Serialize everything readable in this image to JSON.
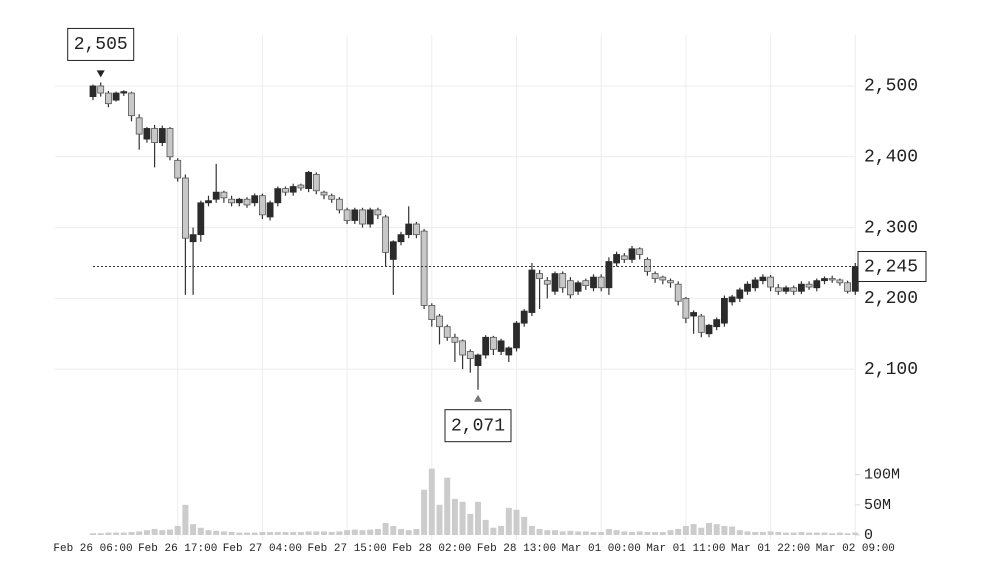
{
  "chart_data": [
    {
      "type": "candlestick",
      "x": [
        "Feb 26 06:00",
        null,
        null,
        null,
        null,
        null,
        null,
        null,
        null,
        null,
        null,
        "Feb 26 17:00",
        null,
        null,
        null,
        null,
        null,
        null,
        null,
        null,
        null,
        null,
        "Feb 27 04:00",
        null,
        null,
        null,
        null,
        null,
        null,
        null,
        null,
        null,
        null,
        "Feb 27 15:00",
        null,
        null,
        null,
        null,
        null,
        null,
        null,
        null,
        null,
        null,
        "Feb 28 02:00",
        null,
        null,
        null,
        null,
        null,
        null,
        null,
        null,
        null,
        null,
        "Feb 28 13:00",
        null,
        null,
        null,
        null,
        null,
        null,
        null,
        null,
        null,
        null,
        "Mar 01 00:00",
        null,
        null,
        null,
        null,
        null,
        null,
        null,
        null,
        null,
        null,
        "Mar 01 11:00",
        null,
        null,
        null,
        null,
        null,
        null,
        null,
        null,
        null,
        null,
        "Mar 01 22:00",
        null,
        null,
        null,
        null,
        null,
        null,
        null,
        null,
        null,
        null,
        "Mar 02 09:00"
      ],
      "open": [
        2485,
        2500,
        2490,
        2480,
        2490,
        2490,
        2455,
        2425,
        2440,
        2420,
        2440,
        2395,
        2370,
        2280,
        2290,
        2335,
        2340,
        2350,
        2340,
        2335,
        2340,
        2335,
        2345,
        2315,
        2335,
        2355,
        2350,
        2360,
        2355,
        2375,
        2350,
        2345,
        2340,
        2325,
        2310,
        2325,
        2305,
        2325,
        2315,
        2255,
        2280,
        2290,
        2305,
        2295,
        2190,
        2175,
        2160,
        2145,
        2140,
        2125,
        2105,
        2120,
        2145,
        2125,
        2120,
        2130,
        2165,
        2180,
        2235,
        2225,
        2210,
        2235,
        2225,
        2210,
        2225,
        2215,
        2230,
        2215,
        2250,
        2260,
        2255,
        2270,
        2255,
        2235,
        2230,
        2225,
        2220,
        2200,
        2175,
        2175,
        2150,
        2160,
        2165,
        2195,
        2200,
        2210,
        2215,
        2225,
        2230,
        2215,
        2210,
        2215,
        2210,
        2220,
        2215,
        2225,
        2228,
        2226,
        2222,
        2210
      ],
      "high": [
        2502,
        2505,
        2493,
        2492,
        2494,
        2492,
        2460,
        2442,
        2445,
        2444,
        2442,
        2398,
        2375,
        2300,
        2338,
        2345,
        2390,
        2352,
        2345,
        2342,
        2343,
        2348,
        2348,
        2338,
        2358,
        2358,
        2362,
        2362,
        2380,
        2378,
        2352,
        2348,
        2343,
        2328,
        2328,
        2328,
        2328,
        2328,
        2318,
        2282,
        2294,
        2330,
        2308,
        2298,
        2193,
        2178,
        2163,
        2150,
        2142,
        2128,
        2122,
        2148,
        2147,
        2143,
        2132,
        2168,
        2185,
        2250,
        2240,
        2230,
        2238,
        2238,
        2230,
        2225,
        2228,
        2234,
        2234,
        2258,
        2266,
        2264,
        2274,
        2272,
        2258,
        2238,
        2232,
        2228,
        2224,
        2202,
        2183,
        2178,
        2164,
        2173,
        2204,
        2205,
        2215,
        2224,
        2230,
        2234,
        2233,
        2220,
        2218,
        2218,
        2224,
        2224,
        2228,
        2231,
        2232,
        2228,
        2225,
        2250
      ],
      "low": [
        2480,
        2485,
        2470,
        2478,
        2486,
        2450,
        2410,
        2420,
        2385,
        2415,
        2395,
        2365,
        2205,
        2205,
        2280,
        2330,
        2335,
        2335,
        2330,
        2330,
        2328,
        2330,
        2312,
        2310,
        2330,
        2345,
        2345,
        2352,
        2350,
        2347,
        2340,
        2335,
        2320,
        2305,
        2305,
        2300,
        2300,
        2312,
        2245,
        2205,
        2275,
        2285,
        2285,
        2185,
        2160,
        2135,
        2140,
        2110,
        2100,
        2095,
        2071,
        2115,
        2120,
        2120,
        2110,
        2125,
        2160,
        2175,
        2185,
        2200,
        2205,
        2208,
        2200,
        2205,
        2212,
        2210,
        2210,
        2205,
        2245,
        2250,
        2250,
        2255,
        2232,
        2222,
        2220,
        2215,
        2190,
        2165,
        2150,
        2145,
        2145,
        2155,
        2160,
        2190,
        2195,
        2205,
        2210,
        2220,
        2210,
        2205,
        2206,
        2205,
        2206,
        2212,
        2210,
        2220,
        2222,
        2218,
        2207,
        2205
      ],
      "close": [
        2500,
        2490,
        2475,
        2490,
        2492,
        2458,
        2432,
        2440,
        2420,
        2440,
        2400,
        2370,
        2285,
        2290,
        2335,
        2338,
        2350,
        2342,
        2335,
        2340,
        2332,
        2345,
        2318,
        2335,
        2355,
        2350,
        2358,
        2356,
        2378,
        2352,
        2346,
        2340,
        2325,
        2310,
        2325,
        2305,
        2325,
        2318,
        2265,
        2280,
        2290,
        2305,
        2290,
        2190,
        2170,
        2160,
        2145,
        2138,
        2120,
        2115,
        2120,
        2145,
        2128,
        2140,
        2130,
        2165,
        2182,
        2240,
        2228,
        2220,
        2235,
        2215,
        2205,
        2222,
        2218,
        2230,
        2215,
        2252,
        2262,
        2255,
        2270,
        2262,
        2238,
        2228,
        2226,
        2222,
        2196,
        2172,
        2180,
        2152,
        2162,
        2170,
        2200,
        2202,
        2212,
        2220,
        2226,
        2230,
        2216,
        2210,
        2215,
        2210,
        2220,
        2216,
        2225,
        2228,
        2226,
        2222,
        2210,
        2245
      ],
      "up_color": "#2b2b2b",
      "down_color": "#c8c8c8",
      "ylim": [
        2007,
        2572
      ],
      "yticks": [
        {
          "value": 2100,
          "label": "2,100"
        },
        {
          "value": 2200,
          "label": "2,200"
        },
        {
          "value": 2300,
          "label": "2,300"
        },
        {
          "value": 2400,
          "label": "2,400"
        },
        {
          "value": 2500,
          "label": "2,500"
        }
      ],
      "grid": true,
      "max_label": {
        "value": 2505,
        "label": "2,505"
      },
      "min_label": {
        "value": 2071,
        "label": "2,071"
      },
      "last_label": {
        "value": 2245,
        "label": "2,245"
      }
    },
    {
      "type": "bar",
      "values": [
        3,
        3,
        4,
        4,
        4,
        5,
        6,
        8,
        10,
        8,
        9,
        15,
        50,
        18,
        12,
        8,
        7,
        6,
        5,
        4,
        4,
        4,
        5,
        5,
        5,
        5,
        5,
        5,
        6,
        6,
        6,
        5,
        6,
        8,
        9,
        8,
        9,
        10,
        20,
        15,
        10,
        8,
        10,
        75,
        110,
        50,
        95,
        60,
        55,
        35,
        55,
        25,
        12,
        15,
        45,
        42,
        30,
        15,
        10,
        8,
        8,
        6,
        7,
        6,
        6,
        5,
        5,
        10,
        8,
        6,
        5,
        6,
        5,
        5,
        5,
        8,
        10,
        15,
        18,
        12,
        20,
        18,
        15,
        14,
        8,
        6,
        5,
        5,
        6,
        5,
        4,
        4,
        5,
        4,
        4,
        4,
        3,
        4,
        3,
        4
      ],
      "color": "#cccccc",
      "ylim": [
        0,
        121
      ],
      "yticks": [
        0,
        {
          "value": 50,
          "label": "50M"
        },
        {
          "value": 100,
          "label": "100M"
        }
      ]
    }
  ]
}
